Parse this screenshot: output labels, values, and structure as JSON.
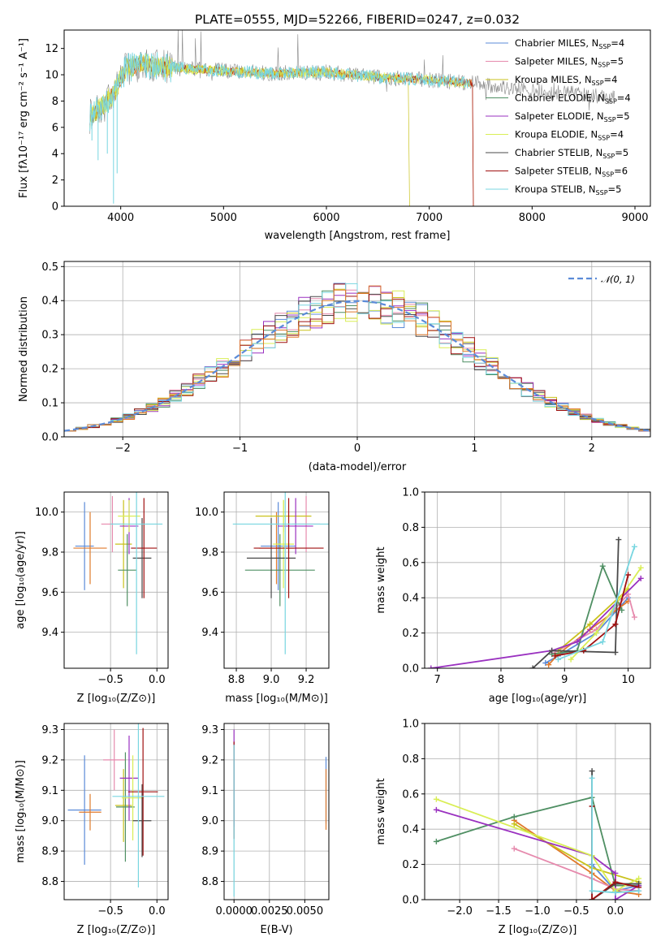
{
  "palette": {
    "chab_miles": "#5b8bd8",
    "salp_miles": "#e68aad",
    "krou_miles": "#c9c21c",
    "chab_elodie": "#4f8f63",
    "salp_elodie": "#9a31c0",
    "krou_elodie": "#d9ee55",
    "chab_stelib": "#4a4a4a",
    "salp_stelib": "#a01010",
    "krou_stelib": "#78d6e0",
    "orange": "#e07a2c",
    "data": "#888888",
    "grid": "#b0b0b0",
    "gauss": "#5b8bd8"
  },
  "chart_data": [
    {
      "id": "spectrum",
      "type": "line",
      "title": "PLATE=0555, MJD=52266, FIBERID=0247, z=0.032",
      "xlabel": "wavelength [Angstrom, rest frame]",
      "ylabel": "Flux [fλ10⁻¹⁷ erg cm⁻² s⁻¹ A⁻¹]",
      "xlim": [
        3450,
        9150
      ],
      "ylim": [
        0,
        13.4
      ],
      "xticks": [
        "4000",
        "5000",
        "6000",
        "7000",
        "8000",
        "9000"
      ],
      "yticks": [
        "0",
        "2",
        "4",
        "6",
        "8",
        "10",
        "12"
      ],
      "grid": false,
      "legend_position": "top-right",
      "legend": [
        {
          "label": "Chabrier MILES, N",
          "sub": "SSP",
          "suffix": "=4"
        },
        {
          "label": "Salpeter MILES, N",
          "sub": "SSP",
          "suffix": "=5"
        },
        {
          "label": "Kroupa MILES, N",
          "sub": "SSP",
          "suffix": "=4"
        },
        {
          "label": "Chabrier ELODIE, N",
          "sub": "SSP",
          "suffix": "=4"
        },
        {
          "label": "Salpeter ELODIE, N",
          "sub": "SSP",
          "suffix": "=5"
        },
        {
          "label": "Kroupa ELODIE, N",
          "sub": "SSP",
          "suffix": "=4"
        },
        {
          "label": "Chabrier STELIB, N",
          "sub": "SSP",
          "suffix": "=5"
        },
        {
          "label": "Salpeter STELIB, N",
          "sub": "SSP",
          "suffix": "=6"
        },
        {
          "label": "Kroupa STELIB, N",
          "sub": "SSP",
          "suffix": "=5"
        }
      ],
      "continuum": [
        [
          3700,
          6.8
        ],
        [
          3850,
          7.8
        ],
        [
          3950,
          8.8
        ],
        [
          4050,
          10.5
        ],
        [
          4200,
          10.8
        ],
        [
          4500,
          10.5
        ],
        [
          5000,
          10.3
        ],
        [
          5500,
          10.1
        ],
        [
          6000,
          10.2
        ],
        [
          6500,
          9.8
        ],
        [
          7000,
          9.6
        ],
        [
          7500,
          9.3
        ],
        [
          8000,
          8.8
        ],
        [
          8500,
          8.5
        ],
        [
          8800,
          8.3
        ]
      ],
      "series_ranges": {
        "data": [
          3700,
          8800
        ],
        "miles": [
          3700,
          7400
        ],
        "elodie": [
          3700,
          6800
        ],
        "stelib": [
          3700,
          7420
        ]
      }
    },
    {
      "id": "residuals",
      "type": "histogram",
      "xlabel": "(data-model)/error",
      "ylabel": "Normed distribution",
      "xlim": [
        -2.5,
        2.5
      ],
      "ylim": [
        0,
        0.515
      ],
      "xticks": [
        "−2",
        "−1",
        "0",
        "1",
        "2"
      ],
      "yticks": [
        "0.0",
        "0.1",
        "0.2",
        "0.3",
        "0.4",
        "0.5"
      ],
      "grid": true,
      "bin_width": 0.1,
      "gaussian_label": "𝒩(0, 1)",
      "legend_position": "top-right"
    },
    {
      "id": "age_vs_Z",
      "type": "scatter",
      "xlabel": "Z [log₁₀(Z/Z⊙)]",
      "ylabel": "age  [log₁₀(age/yr)]",
      "xlim": [
        -1.0,
        0.12
      ],
      "ylim": [
        9.22,
        10.1
      ],
      "xticks": [
        "−0.5",
        "0.0"
      ],
      "yticks": [
        "9.4",
        "9.6",
        "9.8",
        "10.0"
      ],
      "grid": true,
      "points": [
        {
          "s": "chab_miles",
          "x": -0.78,
          "y": 9.83,
          "ex": 0.1,
          "ey": 0.22
        },
        {
          "s": "orange",
          "x": -0.72,
          "y": 9.82,
          "ex": 0.18,
          "ey": 0.18
        },
        {
          "s": "salp_miles",
          "x": -0.48,
          "y": 9.94,
          "ex": 0.12,
          "ey": 0.14
        },
        {
          "s": "krou_miles",
          "x": -0.36,
          "y": 9.84,
          "ex": 0.09,
          "ey": 0.22
        },
        {
          "s": "chab_elodie",
          "x": -0.32,
          "y": 9.71,
          "ex": 0.1,
          "ey": 0.18
        },
        {
          "s": "salp_elodie",
          "x": -0.3,
          "y": 9.93,
          "ex": 0.1,
          "ey": 0.14
        },
        {
          "s": "krou_elodie",
          "x": -0.3,
          "y": 9.98,
          "ex": 0.12,
          "ey": 0.08
        },
        {
          "s": "chab_stelib",
          "x": -0.16,
          "y": 9.77,
          "ex": 0.1,
          "ey": 0.2
        },
        {
          "s": "salp_stelib",
          "x": -0.14,
          "y": 9.82,
          "ex": 0.14,
          "ey": 0.25
        },
        {
          "s": "krou_stelib",
          "x": -0.22,
          "y": 9.94,
          "ex": 0.28,
          "ey": 0.65
        }
      ]
    },
    {
      "id": "age_vs_mass",
      "type": "scatter",
      "xlabel": "mass [log₁₀(M/M⊙)]",
      "ylabel": "",
      "xlim": [
        8.73,
        9.33
      ],
      "ylim": [
        9.22,
        10.1
      ],
      "xticks": [
        "8.8",
        "9.0",
        "9.2"
      ],
      "yticks": [
        "9.4",
        "9.6",
        "9.8",
        "10.0"
      ],
      "grid": true,
      "points": [
        {
          "s": "chab_miles",
          "x": 9.04,
          "y": 9.83,
          "ex": 0.1,
          "ey": 0.22
        },
        {
          "s": "orange",
          "x": 9.03,
          "y": 9.82,
          "ex": 0.1,
          "ey": 0.18
        },
        {
          "s": "salp_miles",
          "x": 9.2,
          "y": 9.94,
          "ex": 0.08,
          "ey": 0.14
        },
        {
          "s": "krou_miles",
          "x": 9.07,
          "y": 9.98,
          "ex": 0.16,
          "ey": 0.08
        },
        {
          "s": "chab_elodie",
          "x": 9.05,
          "y": 9.71,
          "ex": 0.2,
          "ey": 0.18
        },
        {
          "s": "salp_elodie",
          "x": 9.14,
          "y": 9.93,
          "ex": 0.1,
          "ey": 0.14
        },
        {
          "s": "krou_elodie",
          "x": 9.07,
          "y": 9.84,
          "ex": 0.06,
          "ey": 0.22
        },
        {
          "s": "chab_stelib",
          "x": 9.0,
          "y": 9.77,
          "ex": 0.14,
          "ey": 0.2
        },
        {
          "s": "salp_stelib",
          "x": 9.1,
          "y": 9.82,
          "ex": 0.2,
          "ey": 0.25
        },
        {
          "s": "krou_stelib",
          "x": 9.08,
          "y": 9.94,
          "ex": 0.3,
          "ey": 0.65
        }
      ]
    },
    {
      "id": "massweight_vs_age",
      "type": "line",
      "xlabel": "age  [log₁₀(age/yr)]",
      "ylabel": "mass weight",
      "xlim": [
        6.8,
        10.35
      ],
      "ylim": [
        0,
        1.0
      ],
      "xticks": [
        "7",
        "8",
        "9",
        "10"
      ],
      "yticks": [
        "0.0",
        "0.2",
        "0.4",
        "0.6",
        "0.8",
        "1.0"
      ],
      "grid": true,
      "series": [
        {
          "s": "chab_miles",
          "pts": [
            [
              8.7,
              0.03
            ],
            [
              8.9,
              0.07
            ],
            [
              9.5,
              0.2
            ],
            [
              10.0,
              0.4
            ]
          ]
        },
        {
          "s": "orange",
          "pts": [
            [
              8.75,
              0.02
            ],
            [
              8.9,
              0.08
            ],
            [
              9.4,
              0.22
            ],
            [
              10.0,
              0.38
            ]
          ]
        },
        {
          "s": "salp_miles",
          "pts": [
            [
              8.8,
              0.08
            ],
            [
              9.5,
              0.22
            ],
            [
              10.0,
              0.42
            ],
            [
              10.1,
              0.29
            ]
          ]
        },
        {
          "s": "krou_miles",
          "pts": [
            [
              8.9,
              0.1
            ],
            [
              9.4,
              0.25
            ],
            [
              10.0,
              0.45
            ]
          ]
        },
        {
          "s": "chab_elodie",
          "pts": [
            [
              8.8,
              0.08
            ],
            [
              9.2,
              0.1
            ],
            [
              9.6,
              0.58
            ],
            [
              9.9,
              0.33
            ]
          ]
        },
        {
          "s": "salp_elodie",
          "pts": [
            [
              6.9,
              0.0
            ],
            [
              8.8,
              0.1
            ],
            [
              9.2,
              0.15
            ],
            [
              10.2,
              0.51
            ]
          ]
        },
        {
          "s": "krou_elodie",
          "pts": [
            [
              9.1,
              0.05
            ],
            [
              9.5,
              0.2
            ],
            [
              10.2,
              0.57
            ]
          ]
        },
        {
          "s": "chab_stelib",
          "pts": [
            [
              8.5,
              0.0
            ],
            [
              8.8,
              0.1
            ],
            [
              9.8,
              0.09
            ],
            [
              9.85,
              0.73
            ]
          ]
        },
        {
          "s": "salp_stelib",
          "pts": [
            [
              8.85,
              0.07
            ],
            [
              9.3,
              0.1
            ],
            [
              9.8,
              0.25
            ],
            [
              10.0,
              0.53
            ]
          ]
        },
        {
          "s": "krou_stelib",
          "pts": [
            [
              8.9,
              0.05
            ],
            [
              9.6,
              0.15
            ],
            [
              10.1,
              0.69
            ]
          ]
        }
      ]
    },
    {
      "id": "mass_vs_Z",
      "type": "scatter",
      "xlabel": "Z [log₁₀(Z/Z⊙)]",
      "ylabel": "mass [log₁₀(M/M⊙)]",
      "xlim": [
        -1.0,
        0.12
      ],
      "ylim": [
        8.74,
        9.32
      ],
      "xticks": [
        "−0.5",
        "0.0"
      ],
      "yticks": [
        "8.8",
        "8.9",
        "9.0",
        "9.1",
        "9.2",
        "9.3"
      ],
      "grid": true,
      "points": [
        {
          "s": "chab_miles",
          "x": -0.78,
          "y": 9.035,
          "ex": 0.18,
          "ey": 0.18
        },
        {
          "s": "orange",
          "x": -0.72,
          "y": 9.028,
          "ex": 0.12,
          "ey": 0.06
        },
        {
          "s": "salp_miles",
          "x": -0.46,
          "y": 9.2,
          "ex": 0.12,
          "ey": 0.1
        },
        {
          "s": "krou_miles",
          "x": -0.36,
          "y": 9.05,
          "ex": 0.09,
          "ey": 0.12
        },
        {
          "s": "chab_elodie",
          "x": -0.34,
          "y": 9.045,
          "ex": 0.1,
          "ey": 0.18
        },
        {
          "s": "salp_elodie",
          "x": -0.3,
          "y": 9.14,
          "ex": 0.1,
          "ey": 0.14
        },
        {
          "s": "krou_elodie",
          "x": -0.26,
          "y": 9.075,
          "ex": 0.12,
          "ey": 0.14
        },
        {
          "s": "chab_stelib",
          "x": -0.16,
          "y": 9.0,
          "ex": 0.1,
          "ey": 0.12
        },
        {
          "s": "salp_stelib",
          "x": -0.15,
          "y": 9.095,
          "ex": 0.16,
          "ey": 0.21
        },
        {
          "s": "krou_stelib",
          "x": -0.2,
          "y": 9.08,
          "ex": 0.28,
          "ey": 0.3
        }
      ]
    },
    {
      "id": "mass_vs_EBV",
      "type": "scatter",
      "xlabel": "E(B-V)",
      "ylabel": "",
      "xlim": [
        -0.0007,
        0.0067
      ],
      "ylim": [
        8.74,
        9.32
      ],
      "xticks": [
        "0.0000",
        "0.0025",
        "0.0050"
      ],
      "yticks": [
        "8.8",
        "8.9",
        "9.0",
        "9.1",
        "9.2",
        "9.3"
      ],
      "grid": true,
      "points": [
        {
          "s": "salp_elodie",
          "x": 0.0,
          "y": 9.14,
          "ex": 0,
          "ey": 0.16
        },
        {
          "s": "salp_stelib",
          "x": 0.0,
          "y": 9.1,
          "ex": 0,
          "ey": 0.16
        },
        {
          "s": "krou_stelib",
          "x": 0.0,
          "y": 9.0,
          "ex": 0,
          "ey": 0.25
        },
        {
          "s": "chab_miles",
          "x": 0.0065,
          "y": 9.1,
          "ex": 0,
          "ey": 0.11
        },
        {
          "s": "orange",
          "x": 0.0065,
          "y": 9.07,
          "ex": 0,
          "ey": 0.1
        }
      ]
    },
    {
      "id": "massweight_vs_Z",
      "type": "line",
      "xlabel": "Z [log₁₀(Z/Z⊙)]",
      "ylabel": "mass weight",
      "xlim": [
        -2.45,
        0.45
      ],
      "ylim": [
        0,
        1.0
      ],
      "xticks": [
        "−2.0",
        "−1.5",
        "−1.0",
        "−0.5",
        "0.0"
      ],
      "yticks": [
        "0.0",
        "0.2",
        "0.4",
        "0.6",
        "0.8",
        "1.0"
      ],
      "grid": true,
      "series": [
        {
          "s": "chab_miles",
          "pts": [
            [
              -0.3,
              0.2
            ],
            [
              0.0,
              0.05
            ],
            [
              0.3,
              0.08
            ]
          ]
        },
        {
          "s": "orange",
          "pts": [
            [
              -1.3,
              0.45
            ],
            [
              -0.3,
              0.15
            ],
            [
              0.0,
              0.05
            ],
            [
              0.3,
              0.03
            ]
          ]
        },
        {
          "s": "salp_miles",
          "pts": [
            [
              -1.3,
              0.29
            ],
            [
              -0.3,
              0.12
            ],
            [
              0.0,
              0.06
            ],
            [
              0.3,
              0.05
            ]
          ]
        },
        {
          "s": "krou_miles",
          "pts": [
            [
              -1.3,
              0.43
            ],
            [
              -0.3,
              0.18
            ],
            [
              0.3,
              0.1
            ]
          ]
        },
        {
          "s": "chab_elodie",
          "pts": [
            [
              -2.3,
              0.33
            ],
            [
              -1.3,
              0.47
            ],
            [
              -0.3,
              0.58
            ],
            [
              0.0,
              0.08
            ],
            [
              0.3,
              0.08
            ]
          ]
        },
        {
          "s": "salp_elodie",
          "pts": [
            [
              -2.3,
              0.51
            ],
            [
              -0.3,
              0.25
            ],
            [
              0.0,
              0.15
            ],
            [
              0.0,
              0.0
            ],
            [
              0.3,
              0.08
            ]
          ]
        },
        {
          "s": "krou_elodie",
          "pts": [
            [
              -2.3,
              0.57
            ],
            [
              -0.3,
              0.25
            ],
            [
              0.0,
              0.05
            ],
            [
              0.3,
              0.12
            ]
          ]
        },
        {
          "s": "chab_stelib",
          "pts": [
            [
              -0.3,
              0.73
            ],
            [
              -0.3,
              0.0
            ],
            [
              0.0,
              0.09
            ],
            [
              0.3,
              0.09
            ]
          ]
        },
        {
          "s": "salp_stelib",
          "pts": [
            [
              -0.3,
              0.53
            ],
            [
              -0.3,
              0.0
            ],
            [
              0.0,
              0.1
            ],
            [
              0.3,
              0.07
            ]
          ]
        },
        {
          "s": "krou_stelib",
          "pts": [
            [
              -0.3,
              0.69
            ],
            [
              -0.3,
              0.05
            ],
            [
              0.0,
              0.04
            ],
            [
              0.3,
              0.05
            ]
          ]
        }
      ]
    }
  ]
}
